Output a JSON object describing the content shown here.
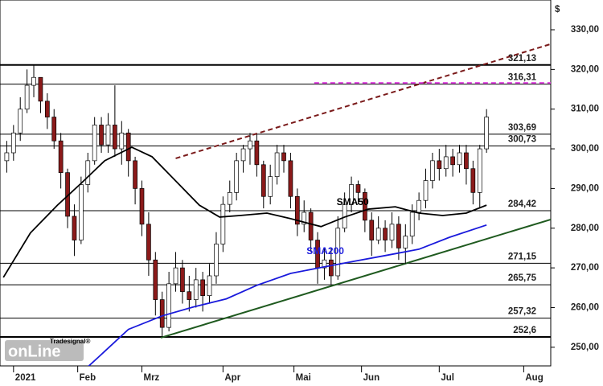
{
  "chart_data": {
    "type": "candlestick",
    "currency": "$",
    "x": [
      1,
      3,
      5,
      7,
      9,
      11,
      13,
      15,
      17,
      19,
      21,
      23,
      25,
      27,
      29,
      31,
      33,
      35,
      37,
      39,
      41,
      43,
      45,
      47,
      49,
      51,
      53,
      55,
      57,
      59,
      61,
      63,
      65,
      67,
      69,
      71,
      73,
      75,
      77,
      79,
      81,
      83,
      85,
      87,
      89,
      91,
      93,
      95,
      97,
      99,
      101,
      103,
      105,
      107,
      109,
      111,
      113,
      115,
      117,
      119,
      121,
      123,
      125,
      127,
      129,
      131,
      133,
      135,
      137,
      139,
      141,
      143
    ],
    "open": [
      297,
      299,
      304,
      310,
      316,
      318,
      312,
      308,
      302,
      294,
      283,
      277,
      291,
      297,
      306,
      301,
      306,
      300,
      304,
      297,
      290,
      281,
      272,
      262,
      255,
      266,
      270,
      264,
      262,
      267,
      263,
      268,
      276,
      286,
      289,
      297,
      300,
      302,
      296,
      288,
      293,
      299,
      297,
      288,
      281,
      284,
      277,
      270,
      272,
      268,
      280,
      286,
      291,
      289,
      282,
      277,
      280,
      277,
      281,
      275,
      278,
      284,
      287,
      292,
      297,
      295,
      298,
      296,
      299,
      295,
      289,
      300
    ],
    "high": [
      302,
      306,
      313,
      320,
      321,
      318,
      314,
      310,
      304,
      295,
      286,
      293,
      299,
      308,
      308,
      309,
      316,
      307,
      305,
      298,
      292,
      284,
      274,
      264,
      269,
      274,
      272,
      268,
      270,
      269,
      271,
      279,
      288,
      292,
      299,
      301,
      304,
      303.7,
      297,
      296,
      301,
      301,
      299,
      290,
      287,
      285,
      279,
      275,
      275,
      283,
      289,
      293,
      292,
      290,
      284,
      283,
      282,
      284,
      283,
      281,
      286,
      289,
      295,
      299,
      300,
      301,
      300,
      301,
      301,
      297,
      301,
      310
    ],
    "low": [
      294,
      297,
      302,
      309,
      313,
      309,
      305,
      300,
      290,
      280,
      273,
      276,
      289,
      296,
      299,
      299,
      298,
      296,
      293,
      286,
      278,
      268,
      258,
      252.6,
      254,
      264,
      261,
      259,
      260,
      259,
      261,
      266,
      274,
      284,
      287,
      294,
      296,
      293,
      285,
      286,
      291,
      294,
      285,
      278,
      279,
      274,
      266,
      267,
      265.8,
      267,
      279,
      284,
      286,
      279,
      273,
      276,
      274,
      275,
      272,
      271,
      276,
      282,
      285,
      290,
      292,
      293,
      293,
      294,
      291,
      286,
      285,
      299
    ],
    "close": [
      299,
      304,
      310,
      316,
      318,
      312,
      308,
      302,
      294,
      283,
      277,
      291,
      297,
      306,
      301,
      306,
      300,
      304,
      297,
      290,
      281,
      272,
      262,
      255,
      266,
      270,
      264,
      262,
      267,
      263,
      268,
      276,
      286,
      289,
      297,
      300,
      302,
      296,
      288,
      293,
      299,
      297,
      288,
      281,
      284,
      277,
      270,
      272,
      268,
      280,
      286,
      291,
      289,
      282,
      277,
      280,
      277,
      281,
      275,
      278,
      284,
      287,
      292,
      297,
      295,
      298,
      296,
      299,
      295,
      289,
      300,
      308
    ],
    "up_color": "#ffffff",
    "down_color": "#8b1a1a",
    "series": [
      {
        "name": "SMA50",
        "color": "#000000",
        "x": [
          0,
          8,
          16,
          23,
          30,
          38,
          44,
          51,
          58,
          64,
          70,
          78,
          85,
          94,
          101,
          108,
          116,
          123,
          130,
          137,
          143
        ],
        "values": [
          267.6,
          278.8,
          285.8,
          291.3,
          297,
          300.4,
          298,
          291.9,
          285.8,
          282.8,
          283.2,
          283.8,
          282.4,
          280.4,
          282.8,
          284.8,
          285.4,
          283.8,
          283.2,
          283.8,
          285.8
        ]
      },
      {
        "name": "SMA200",
        "color": "#1a1adc",
        "x": [
          24,
          28,
          37,
          47,
          56,
          66,
          75,
          85,
          94,
          104,
          113,
          123,
          132,
          143
        ],
        "values": [
          244.3,
          247.4,
          254.5,
          257.9,
          260.1,
          262.2,
          265.6,
          268.6,
          270.1,
          271.7,
          273.1,
          274.7,
          277.7,
          280.8
        ]
      }
    ],
    "trendlines": [
      {
        "x": [
          51,
          162
        ],
        "values": [
          297.6,
          326.4
        ],
        "color": "#7a1a1a",
        "dash": true
      },
      {
        "x": [
          46.6,
          162
        ],
        "values": [
          252.4,
          282.2
        ],
        "color": "#1f5a1f",
        "dash": false
      },
      {
        "x": [
          92,
          162
        ],
        "values": [
          316.6,
          316.6
        ],
        "color": "#e040e0",
        "dash": true
      }
    ],
    "levels": [
      {
        "value": 321.13,
        "label": "321,13"
      },
      {
        "value": 316.31,
        "label": "316,31"
      },
      {
        "value": 303.69,
        "label": "303,69"
      },
      {
        "value": 300.73,
        "label": "300,73"
      },
      {
        "value": 284.42,
        "label": "284,42"
      },
      {
        "value": 271.15,
        "label": "271,15"
      },
      {
        "value": 265.75,
        "label": "265,75"
      },
      {
        "value": 257.32,
        "label": "257,32"
      },
      {
        "value": 252.6,
        "label": "252,6"
      }
    ],
    "xlim": [
      -1,
      162
    ],
    "xticks": [
      {
        "value": 3,
        "label": "2021"
      },
      {
        "value": 22,
        "label": "Feb"
      },
      {
        "value": 41,
        "label": "Mrz"
      },
      {
        "value": 65,
        "label": "Apr"
      },
      {
        "value": 86,
        "label": "Mai"
      },
      {
        "value": 106,
        "label": "Jun"
      },
      {
        "value": 129,
        "label": "Jul"
      },
      {
        "value": 154,
        "label": "Aug"
      }
    ],
    "ylim": [
      245.3,
      337.5
    ],
    "yticks": [
      {
        "value": 250,
        "label": "250,00"
      },
      {
        "value": 260,
        "label": "260,00"
      },
      {
        "value": 270,
        "label": "270,00"
      },
      {
        "value": 280,
        "label": "280,00"
      },
      {
        "value": 290,
        "label": "290,00"
      },
      {
        "value": 300,
        "label": "300,00"
      },
      {
        "value": 310,
        "label": "310,00"
      },
      {
        "value": 320,
        "label": "320,00"
      },
      {
        "value": 330,
        "label": "330,00"
      }
    ]
  },
  "logo": {
    "brand": "Tradesignal®",
    "text": "onLine"
  }
}
